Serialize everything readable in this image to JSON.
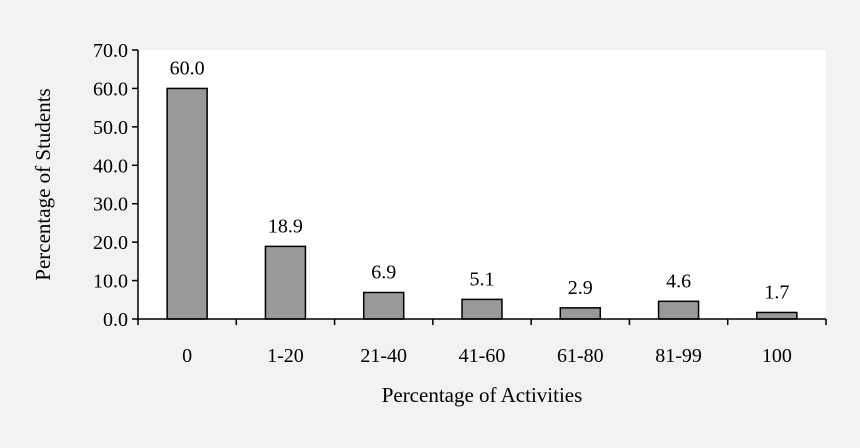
{
  "chart_data": {
    "type": "bar",
    "categories": [
      "0",
      "1-20",
      "21-40",
      "41-60",
      "61-80",
      "81-99",
      "100"
    ],
    "values": [
      60.0,
      18.9,
      6.9,
      5.1,
      2.9,
      4.6,
      1.7
    ],
    "data_labels": [
      "60.0",
      "18.9",
      "6.9",
      "5.1",
      "2.9",
      "4.6",
      "1.7"
    ],
    "xlabel": "Percentage of Activities",
    "ylabel": "Percentage of Students",
    "ylim": [
      0,
      70
    ],
    "yticks": [
      0,
      10,
      20,
      30,
      40,
      50,
      60,
      70
    ],
    "ytick_labels": [
      "0.0",
      "10.0",
      "20.0",
      "30.0",
      "40.0",
      "50.0",
      "60.0",
      "70.0"
    ],
    "grid": false,
    "legend": "none",
    "colors": {
      "background": "#f2f2f2",
      "plot_area": "#ffffff",
      "bar_fill": "#999999",
      "bar_stroke": "#000000",
      "axis": "#000000"
    }
  }
}
